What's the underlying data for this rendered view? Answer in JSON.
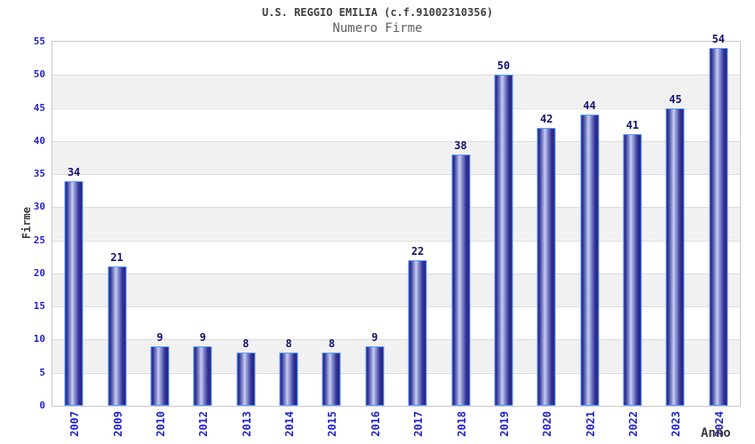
{
  "header": {
    "title": "U.S. REGGIO EMILIA (c.f.91002310356)",
    "subtitle": "Numero Firme"
  },
  "chart_data": {
    "type": "bar",
    "title": "U.S. REGGIO EMILIA (c.f.91002310356)",
    "subtitle": "Numero Firme",
    "categories": [
      "2007",
      "2009",
      "2010",
      "2012",
      "2013",
      "2014",
      "2015",
      "2016",
      "2017",
      "2018",
      "2019",
      "2020",
      "2021",
      "2022",
      "2023",
      "2024"
    ],
    "values": [
      34,
      21,
      9,
      9,
      8,
      8,
      8,
      9,
      22,
      38,
      50,
      42,
      44,
      41,
      45,
      54
    ],
    "xlabel": "Anno",
    "ylabel": "Firme",
    "ylim": [
      0,
      55
    ],
    "yticks": [
      0,
      5,
      10,
      15,
      20,
      25,
      30,
      35,
      40,
      45,
      50,
      55
    ],
    "grid": true,
    "legend": "none",
    "colors": {
      "bar_edge": "#212180",
      "bar_highlight": "#c9cef0",
      "bar_border": "#5c9dff",
      "tick_label": "#2323cd",
      "value_label": "#14146e",
      "band_light": "#ffffff",
      "band_dark": "#f1f1f1",
      "gridline": "#dcdcdc",
      "title_text": "#404040"
    }
  }
}
